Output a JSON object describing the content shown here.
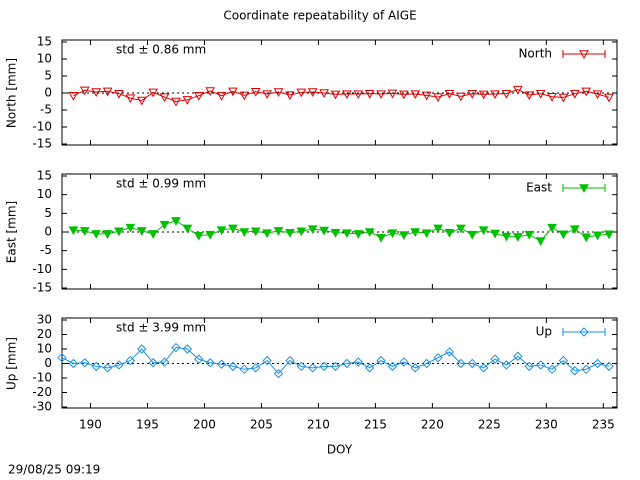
{
  "title": "Coordinate repeatability of AIGE",
  "timestamp": "29/08/25 09:19",
  "chart_data": [
    {
      "type": "line",
      "ylabel": "North [mm]",
      "annotation": "std ± 0.86 mm",
      "xlim": [
        187.5,
        236.2
      ],
      "xticks": [
        190,
        195,
        200,
        205,
        210,
        215,
        220,
        225,
        230,
        235
      ],
      "ylim": [
        -15,
        15
      ],
      "yticks": [
        -15,
        -10,
        -5,
        0,
        5,
        10,
        15
      ],
      "x": [
        188.5,
        189.5,
        190.5,
        191.5,
        192.5,
        193.5,
        194.5,
        195.5,
        196.5,
        197.5,
        198.5,
        199.5,
        200.5,
        201.5,
        202.5,
        203.5,
        204.5,
        205.5,
        206.5,
        207.5,
        208.5,
        209.5,
        210.5,
        211.5,
        212.5,
        213.5,
        214.5,
        215.5,
        216.5,
        217.5,
        218.5,
        219.5,
        220.5,
        221.5,
        222.5,
        223.5,
        224.5,
        225.5,
        226.5,
        227.5,
        228.5,
        229.5,
        230.5,
        231.5,
        232.5,
        233.5,
        234.5,
        235.5
      ],
      "series": [
        {
          "name": "North",
          "color": "#e00000",
          "marker": "triangle-open",
          "values": [
            -0.8,
            0.8,
            0.3,
            0.5,
            -0.2,
            -1.5,
            -2.2,
            0.2,
            -1.2,
            -2.5,
            -2.0,
            -0.8,
            0.6,
            -0.8,
            0.5,
            -0.7,
            0.4,
            -0.3,
            0.3,
            -0.6,
            0.2,
            0.3,
            0.0,
            -0.4,
            -0.3,
            -0.3,
            -0.2,
            -0.3,
            -0.1,
            -0.4,
            -0.3,
            -0.7,
            -1.2,
            -0.2,
            -1.0,
            -0.2,
            -0.4,
            -0.3,
            -0.2,
            1.0,
            -0.6,
            -0.2,
            -1.1,
            -1.3,
            -0.2,
            0.5,
            -0.3,
            -1.3
          ]
        }
      ]
    },
    {
      "type": "line",
      "ylabel": "East [mm]",
      "annotation": "std ± 0.99 mm",
      "xlim": [
        187.5,
        236.2
      ],
      "xticks": [
        190,
        195,
        200,
        205,
        210,
        215,
        220,
        225,
        230,
        235
      ],
      "ylim": [
        -15,
        15
      ],
      "yticks": [
        -15,
        -10,
        -5,
        0,
        5,
        10,
        15
      ],
      "x": [
        188.5,
        189.5,
        190.5,
        191.5,
        192.5,
        193.5,
        194.5,
        195.5,
        196.5,
        197.5,
        198.5,
        199.5,
        200.5,
        201.5,
        202.5,
        203.5,
        204.5,
        205.5,
        206.5,
        207.5,
        208.5,
        209.5,
        210.5,
        211.5,
        212.5,
        213.5,
        214.5,
        215.5,
        216.5,
        217.5,
        218.5,
        219.5,
        220.5,
        221.5,
        222.5,
        223.5,
        224.5,
        225.5,
        226.5,
        227.5,
        228.5,
        229.5,
        230.5,
        231.5,
        232.5,
        233.5,
        234.5,
        235.5
      ],
      "series": [
        {
          "name": "East",
          "color": "#00c000",
          "marker": "triangle-filled",
          "values": [
            0.5,
            0.3,
            -0.5,
            -0.5,
            0.2,
            1.2,
            0.3,
            -0.5,
            2.0,
            3.0,
            1.0,
            -1.0,
            -0.7,
            0.5,
            1.0,
            0.0,
            0.2,
            -0.3,
            0.3,
            -0.2,
            0.2,
            0.8,
            0.4,
            -0.2,
            -0.3,
            -0.5,
            0.0,
            -1.5,
            -0.3,
            -0.8,
            0.0,
            -0.3,
            1.0,
            -0.2,
            1.0,
            -0.7,
            0.5,
            -0.4,
            -1.2,
            -1.3,
            -0.7,
            -2.4,
            1.2,
            -0.6,
            0.8,
            -1.4,
            -0.9,
            -0.6
          ]
        }
      ]
    },
    {
      "type": "line",
      "ylabel": "Up [mm]",
      "annotation": "std ± 3.99 mm",
      "xlabel": "DOY",
      "xlim": [
        187.5,
        236.2
      ],
      "xticks": [
        190,
        195,
        200,
        205,
        210,
        215,
        220,
        225,
        230,
        235
      ],
      "ylim": [
        -30,
        30
      ],
      "yticks": [
        -30,
        -20,
        -10,
        0,
        10,
        20,
        30
      ],
      "x": [
        187.5,
        188.5,
        189.5,
        190.5,
        191.5,
        192.5,
        193.5,
        194.5,
        195.5,
        196.5,
        197.5,
        198.5,
        199.5,
        200.5,
        201.5,
        202.5,
        203.5,
        204.5,
        205.5,
        206.5,
        207.5,
        208.5,
        209.5,
        210.5,
        211.5,
        212.5,
        213.5,
        214.5,
        215.5,
        216.5,
        217.5,
        218.5,
        219.5,
        220.5,
        221.5,
        222.5,
        223.5,
        224.5,
        225.5,
        226.5,
        227.5,
        228.5,
        229.5,
        230.5,
        231.5,
        232.5,
        233.5,
        234.5,
        235.5
      ],
      "series": [
        {
          "name": "Up",
          "color": "#1e90e0",
          "marker": "diamond-open",
          "values": [
            4,
            0,
            0.5,
            -2,
            -3,
            -1,
            2,
            10,
            0.5,
            1,
            11,
            10,
            3,
            0.5,
            -0.5,
            -2,
            -4,
            -3,
            2,
            -7,
            2,
            -2,
            -3,
            -2,
            -2,
            0,
            1,
            -3,
            2,
            -2,
            1,
            -3,
            0,
            4,
            8,
            0,
            0,
            -3,
            3,
            -1,
            5,
            -2,
            -1,
            -4,
            2,
            -5,
            -4,
            0,
            -2
          ]
        }
      ]
    }
  ]
}
